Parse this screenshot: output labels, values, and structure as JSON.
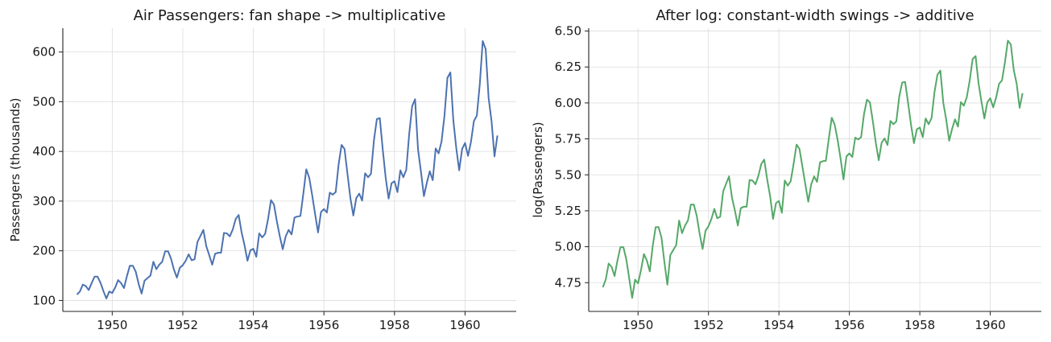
{
  "chart_data": [
    {
      "type": "line",
      "title": "Air Passengers: fan shape -> multiplicative",
      "xlabel": "",
      "ylabel": "Passengers (thousands)",
      "xlim": [
        1948.6,
        1961.45
      ],
      "ylim": [
        78,
        648
      ],
      "xticks": [
        1950,
        1952,
        1954,
        1956,
        1958,
        1960
      ],
      "yticks": [
        100,
        200,
        300,
        400,
        500,
        600
      ],
      "ytick_labels": [
        "100",
        "200",
        "300",
        "400",
        "500",
        "600"
      ],
      "grid": true,
      "x_start": 1949.0,
      "x_step": 0.0833333,
      "series": [
        {
          "color": "#4c72b0",
          "values": [
            112,
            118,
            132,
            129,
            121,
            135,
            148,
            148,
            136,
            119,
            104,
            118,
            115,
            126,
            141,
            135,
            125,
            149,
            170,
            170,
            158,
            133,
            114,
            140,
            145,
            150,
            178,
            163,
            172,
            178,
            199,
            199,
            184,
            162,
            146,
            166,
            171,
            180,
            193,
            181,
            183,
            218,
            230,
            242,
            209,
            191,
            172,
            194,
            196,
            196,
            236,
            235,
            229,
            243,
            264,
            272,
            237,
            211,
            180,
            201,
            204,
            188,
            235,
            227,
            234,
            264,
            302,
            293,
            259,
            229,
            203,
            229,
            242,
            233,
            267,
            269,
            270,
            315,
            364,
            347,
            312,
            274,
            237,
            278,
            284,
            277,
            317,
            313,
            318,
            374,
            413,
            405,
            355,
            306,
            271,
            306,
            315,
            301,
            356,
            348,
            355,
            422,
            465,
            467,
            404,
            347,
            305,
            336,
            340,
            318,
            362,
            348,
            363,
            435,
            491,
            505,
            404,
            359,
            310,
            337,
            360,
            342,
            406,
            396,
            420,
            472,
            548,
            559,
            463,
            407,
            362,
            405,
            417,
            391,
            419,
            461,
            472,
            535,
            622,
            606,
            508,
            461,
            390,
            432
          ]
        }
      ]
    },
    {
      "type": "line",
      "title": "After log: constant-width swings -> additive",
      "xlabel": "",
      "ylabel": "log(Passengers)",
      "xlim": [
        1948.6,
        1961.45
      ],
      "ylim": [
        4.55,
        6.52
      ],
      "xticks": [
        1950,
        1952,
        1954,
        1956,
        1958,
        1960
      ],
      "yticks": [
        4.75,
        5.0,
        5.25,
        5.5,
        5.75,
        6.0,
        6.25,
        6.5
      ],
      "ytick_labels": [
        "4.75",
        "5.00",
        "5.25",
        "5.50",
        "5.75",
        "6.00",
        "6.25",
        "6.50"
      ],
      "grid": true,
      "x_start": 1949.0,
      "x_step": 0.0833333,
      "series": [
        {
          "color": "#55a868",
          "values": [
            4.718,
            4.771,
            4.883,
            4.86,
            4.796,
            4.905,
            4.997,
            4.997,
            4.913,
            4.779,
            4.644,
            4.771,
            4.745,
            4.836,
            4.949,
            4.905,
            4.828,
            5.004,
            5.136,
            5.136,
            5.063,
            4.89,
            4.736,
            4.942,
            4.977,
            5.011,
            5.182,
            5.094,
            5.147,
            5.182,
            5.293,
            5.293,
            5.215,
            5.088,
            4.984,
            5.112,
            5.142,
            5.193,
            5.263,
            5.198,
            5.209,
            5.384,
            5.438,
            5.489,
            5.342,
            5.252,
            5.147,
            5.268,
            5.278,
            5.278,
            5.464,
            5.46,
            5.434,
            5.493,
            5.576,
            5.606,
            5.468,
            5.352,
            5.193,
            5.303,
            5.318,
            5.236,
            5.46,
            5.425,
            5.455,
            5.576,
            5.71,
            5.68,
            5.557,
            5.434,
            5.313,
            5.434,
            5.489,
            5.451,
            5.587,
            5.595,
            5.598,
            5.753,
            5.897,
            5.849,
            5.743,
            5.613,
            5.468,
            5.628,
            5.649,
            5.624,
            5.759,
            5.746,
            5.762,
            5.924,
            6.023,
            6.004,
            5.872,
            5.724,
            5.602,
            5.724,
            5.753,
            5.707,
            5.875,
            5.852,
            5.872,
            6.045,
            6.142,
            6.146,
            6.001,
            5.849,
            5.72,
            5.817,
            5.829,
            5.762,
            5.892,
            5.852,
            5.894,
            6.075,
            6.196,
            6.225,
            6.001,
            5.883,
            5.737,
            5.82,
            5.886,
            5.835,
            6.006,
            5.981,
            6.04,
            6.157,
            6.306,
            6.326,
            6.138,
            6.009,
            5.892,
            6.004,
            6.033,
            5.969,
            6.038,
            6.133,
            6.157,
            6.283,
            6.433,
            6.407,
            6.23,
            6.133,
            5.966,
            6.068
          ]
        }
      ]
    }
  ]
}
